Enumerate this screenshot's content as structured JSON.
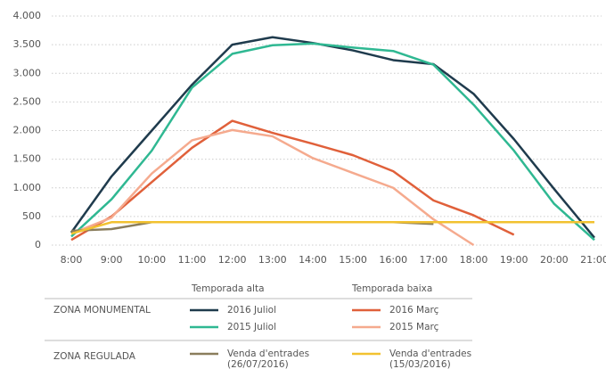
{
  "chart_data": {
    "type": "line",
    "categories": [
      "8:00",
      "9:00",
      "10:00",
      "11:00",
      "12:00",
      "13:00",
      "14:00",
      "15:00",
      "16:00",
      "17:00",
      "18:00",
      "19:00",
      "20:00",
      "21:00"
    ],
    "series": [
      {
        "name": "2016 Juliol",
        "color": "#1f3b4d",
        "values": [
          220,
          1200,
          2000,
          2800,
          3500,
          3630,
          3530,
          3400,
          3230,
          3160,
          2640,
          1850,
          980,
          130
        ]
      },
      {
        "name": "2015 Juliol",
        "color": "#2fb892",
        "values": [
          150,
          800,
          1650,
          2750,
          3340,
          3490,
          3520,
          3450,
          3390,
          3150,
          2450,
          1650,
          720,
          90
        ]
      },
      {
        "name": "2016 Març",
        "color": "#e0603a",
        "values": [
          90,
          500,
          1100,
          1700,
          2170,
          1960,
          1770,
          1570,
          1290,
          780,
          520,
          180,
          null,
          null
        ]
      },
      {
        "name": "2015 Març",
        "color": "#f5aa8e",
        "values": [
          200,
          480,
          1250,
          1830,
          2010,
          1900,
          1520,
          1260,
          1000,
          450,
          0,
          null,
          null,
          null
        ]
      },
      {
        "name": "Venda d'entrades (26/07/2016)",
        "color": "#8a7d5c",
        "values": [
          250,
          280,
          400,
          400,
          400,
          400,
          400,
          400,
          400,
          370,
          null,
          null,
          null,
          null
        ]
      },
      {
        "name": "Venda d'entrades (15/03/2016)",
        "color": "#f2c230",
        "values": [
          200,
          400,
          400,
          400,
          400,
          400,
          400,
          400,
          400,
          400,
          400,
          400,
          400,
          400
        ]
      }
    ],
    "ylim": [
      0,
      4000
    ],
    "yticks": [
      0,
      500,
      {
        "value": 1000,
        "label": "1.000"
      },
      {
        "value": 1500,
        "label": "1.500"
      },
      {
        "value": 2000,
        "label": "2.000"
      },
      {
        "value": 2500,
        "label": "2.500"
      },
      {
        "value": 3000,
        "label": "3.000"
      },
      {
        "value": 3500,
        "label": "3.500"
      },
      {
        "value": 4000,
        "label": "4.000"
      }
    ],
    "grid": true,
    "legend_columns": [
      "Temporada alta",
      "Temporada baixa"
    ],
    "legend_rows": [
      "ZONA MONUMENTAL",
      "ZONA REGULADA"
    ]
  }
}
